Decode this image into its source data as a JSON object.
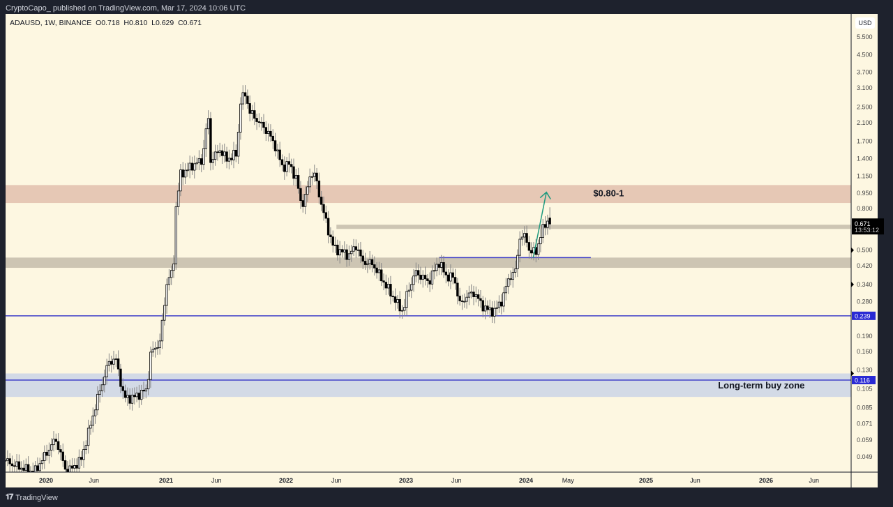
{
  "header": {
    "publisher": "CryptoCapo_ published on TradingView.com, Mar 17, 2024 10:06 UTC"
  },
  "legend": {
    "symbol": "ADAUSD, 1W, BINANCE",
    "open": "O0.718",
    "high": "H0.810",
    "low": "L0.629",
    "close": "C0.671"
  },
  "currency": "USD",
  "footer": {
    "brand": "TradingView",
    "logo": "TV"
  },
  "chart_data": {
    "type": "candlestick",
    "symbol": "ADAUSD",
    "interval": "1W",
    "scale": "log",
    "ylim": [
      0.041,
      5.5
    ],
    "xlim": [
      2019.66,
      2026.85
    ],
    "price_path": [
      [
        2019.66,
        0.047
      ],
      [
        2019.72,
        0.045
      ],
      [
        2019.9,
        0.041
      ],
      [
        2020.08,
        0.06
      ],
      [
        2020.17,
        0.041
      ],
      [
        2020.29,
        0.047
      ],
      [
        2020.37,
        0.07
      ],
      [
        2020.43,
        0.095
      ],
      [
        2020.52,
        0.141
      ],
      [
        2020.58,
        0.148
      ],
      [
        2020.65,
        0.095
      ],
      [
        2020.72,
        0.095
      ],
      [
        2020.84,
        0.104
      ],
      [
        2020.87,
        0.155
      ],
      [
        2020.95,
        0.179
      ],
      [
        2021.01,
        0.36
      ],
      [
        2021.06,
        0.39
      ],
      [
        2021.08,
        0.79
      ],
      [
        2021.12,
        1.17
      ],
      [
        2021.16,
        1.22
      ],
      [
        2021.24,
        1.32
      ],
      [
        2021.3,
        1.37
      ],
      [
        2021.35,
        2.29
      ],
      [
        2021.37,
        1.37
      ],
      [
        2021.45,
        1.55
      ],
      [
        2021.51,
        1.37
      ],
      [
        2021.53,
        1.42
      ],
      [
        2021.59,
        1.48
      ],
      [
        2021.62,
        2.67
      ],
      [
        2021.66,
        2.89
      ],
      [
        2021.7,
        2.36
      ],
      [
        2021.8,
        2.03
      ],
      [
        2021.85,
        1.88
      ],
      [
        2021.91,
        1.61
      ],
      [
        2021.97,
        1.27
      ],
      [
        2022.03,
        1.32
      ],
      [
        2022.09,
        1.09
      ],
      [
        2022.13,
        0.82
      ],
      [
        2022.17,
        0.94
      ],
      [
        2022.2,
        1.17
      ],
      [
        2022.24,
        1.17
      ],
      [
        2022.29,
        0.86
      ],
      [
        2022.35,
        0.63
      ],
      [
        2022.4,
        0.51
      ],
      [
        2022.47,
        0.49
      ],
      [
        2022.52,
        0.47
      ],
      [
        2022.59,
        0.53
      ],
      [
        2022.63,
        0.44
      ],
      [
        2022.72,
        0.43
      ],
      [
        2022.8,
        0.36
      ],
      [
        2022.87,
        0.31
      ],
      [
        2022.95,
        0.26
      ],
      [
        2022.98,
        0.253
      ],
      [
        2023.01,
        0.31
      ],
      [
        2023.08,
        0.39
      ],
      [
        2023.13,
        0.37
      ],
      [
        2023.19,
        0.35
      ],
      [
        2023.27,
        0.44
      ],
      [
        2023.34,
        0.37
      ],
      [
        2023.4,
        0.37
      ],
      [
        2023.45,
        0.27
      ],
      [
        2023.51,
        0.3
      ],
      [
        2023.57,
        0.31
      ],
      [
        2023.63,
        0.27
      ],
      [
        2023.69,
        0.253
      ],
      [
        2023.74,
        0.253
      ],
      [
        2023.8,
        0.285
      ],
      [
        2023.86,
        0.37
      ],
      [
        2023.92,
        0.4
      ],
      [
        2023.94,
        0.58
      ],
      [
        2024.0,
        0.58
      ],
      [
        2024.03,
        0.49
      ],
      [
        2024.08,
        0.49
      ],
      [
        2024.1,
        0.53
      ],
      [
        2024.13,
        0.61
      ],
      [
        2024.17,
        0.7
      ],
      [
        2024.2,
        0.671
      ]
    ],
    "last": {
      "open": 0.718,
      "high": 0.81,
      "low": 0.629,
      "close": 0.671
    },
    "y_ticks": [
      "5.500",
      "4.500",
      "3.700",
      "3.100",
      "2.500",
      "2.100",
      "1.700",
      "1.400",
      "1.150",
      "0.950",
      "0.800",
      "0.500",
      "0.420",
      "0.340",
      "0.280",
      "0.190",
      "0.160",
      "0.130",
      "0.105",
      "0.085",
      "0.071",
      "0.059",
      "0.049"
    ],
    "x_ticks": [
      {
        "label": "2020",
        "t": 2020,
        "major": true
      },
      {
        "label": "Jun",
        "t": 2020.4
      },
      {
        "label": "2021",
        "t": 2021,
        "major": true
      },
      {
        "label": "Jun",
        "t": 2021.42
      },
      {
        "label": "2022",
        "t": 2022,
        "major": true
      },
      {
        "label": "Jun",
        "t": 2022.42
      },
      {
        "label": "2023",
        "t": 2023,
        "major": true
      },
      {
        "label": "Jun",
        "t": 2023.42
      },
      {
        "label": "2024",
        "t": 2024,
        "major": true
      },
      {
        "label": "May",
        "t": 2024.35
      },
      {
        "label": "2025",
        "t": 2025,
        "major": true
      },
      {
        "label": "Jun",
        "t": 2025.41
      },
      {
        "label": "2026",
        "t": 2026,
        "major": true
      },
      {
        "label": "Jun",
        "t": 2026.4
      }
    ],
    "zones": [
      {
        "name": "target-zone",
        "low": 0.85,
        "high": 1.04,
        "color": "#e6c8b5"
      },
      {
        "name": "support-zone",
        "low": 0.41,
        "high": 0.46,
        "color": "#cdc5b3"
      },
      {
        "name": "long-term-buy-zone",
        "low": 0.096,
        "high": 0.125,
        "color": "#d3dae6"
      }
    ],
    "lines": [
      {
        "name": "resistance-line",
        "price": 0.65,
        "from": 2022.42,
        "color": "#cdc5b3",
        "width": 6
      },
      {
        "name": "breakout-line",
        "price": 0.46,
        "from": 2023.28,
        "to": 2024.54,
        "color": "#3f3fc8",
        "width": 1.5
      },
      {
        "name": "level-0239",
        "price": 0.239,
        "label": "0.239",
        "color": "#3f3fc8",
        "width": 1.5
      },
      {
        "name": "level-0116",
        "price": 0.116,
        "label": "0.116",
        "color": "#3f3fc8",
        "width": 1.5
      }
    ],
    "price_label": {
      "value": "0.671",
      "countdown": "13:53:12"
    },
    "annotations": [
      {
        "text": "$0.80-1",
        "price": 0.945,
        "t": 2024.56
      },
      {
        "text": "Long-term buy zone",
        "price": 0.109,
        "t": 2025.6
      }
    ],
    "arrow": {
      "from": [
        2024.06,
        0.46
      ],
      "to": [
        2024.17,
        0.96
      ],
      "color": "#1f9a7f"
    }
  }
}
